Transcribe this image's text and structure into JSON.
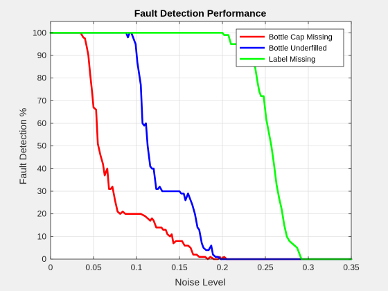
{
  "chart_data": {
    "type": "line",
    "title": "Fault Detection Performance",
    "xlabel": "Noise Level",
    "ylabel": "Fault Detection %",
    "xlim": [
      0,
      0.35
    ],
    "ylim": [
      0,
      105
    ],
    "xticks": [
      0,
      0.05,
      0.1,
      0.15,
      0.2,
      0.25,
      0.3,
      0.35
    ],
    "xtick_labels": [
      "0",
      "0.05",
      "0.1",
      "0.15",
      "0.2",
      "0.25",
      "0.3",
      "0.35"
    ],
    "yticks": [
      0,
      10,
      20,
      30,
      40,
      50,
      60,
      70,
      80,
      90,
      100
    ],
    "ytick_labels": [
      "0",
      "10",
      "20",
      "30",
      "40",
      "50",
      "60",
      "70",
      "80",
      "90",
      "100"
    ],
    "grid": true,
    "legend_position": "top-right",
    "series": [
      {
        "name": "Bottle Cap Missing",
        "color": "#ff0000",
        "points": [
          [
            0,
            100
          ],
          [
            0.035,
            100
          ],
          [
            0.038,
            98
          ],
          [
            0.04,
            97.5
          ],
          [
            0.042,
            94
          ],
          [
            0.044,
            90
          ],
          [
            0.046,
            82
          ],
          [
            0.048,
            75
          ],
          [
            0.05,
            67
          ],
          [
            0.053,
            66
          ],
          [
            0.055,
            51
          ],
          [
            0.058,
            46
          ],
          [
            0.061,
            42
          ],
          [
            0.063,
            37
          ],
          [
            0.066,
            40
          ],
          [
            0.068,
            31
          ],
          [
            0.07,
            31
          ],
          [
            0.072,
            32
          ],
          [
            0.075,
            26
          ],
          [
            0.078,
            21
          ],
          [
            0.081,
            20
          ],
          [
            0.084,
            21
          ],
          [
            0.087,
            20
          ],
          [
            0.09,
            20
          ],
          [
            0.095,
            20
          ],
          [
            0.1,
            20
          ],
          [
            0.105,
            20
          ],
          [
            0.11,
            19
          ],
          [
            0.113,
            18
          ],
          [
            0.116,
            17
          ],
          [
            0.118,
            18
          ],
          [
            0.12,
            17
          ],
          [
            0.123,
            14
          ],
          [
            0.126,
            14
          ],
          [
            0.129,
            14
          ],
          [
            0.131,
            13
          ],
          [
            0.134,
            13
          ],
          [
            0.136,
            11
          ],
          [
            0.139,
            10
          ],
          [
            0.141,
            11
          ],
          [
            0.143,
            7
          ],
          [
            0.146,
            8
          ],
          [
            0.15,
            8
          ],
          [
            0.153,
            8
          ],
          [
            0.156,
            6
          ],
          [
            0.16,
            6
          ],
          [
            0.163,
            5
          ],
          [
            0.166,
            2
          ],
          [
            0.17,
            2
          ],
          [
            0.173,
            1
          ],
          [
            0.176,
            1
          ],
          [
            0.18,
            1
          ],
          [
            0.183,
            0
          ],
          [
            0.186,
            1
          ],
          [
            0.19,
            0
          ],
          [
            0.195,
            0
          ],
          [
            0.197,
            1
          ],
          [
            0.199,
            0
          ],
          [
            0.202,
            1
          ],
          [
            0.205,
            0
          ],
          [
            0.35,
            0
          ]
        ]
      },
      {
        "name": "Bottle Underfilled",
        "color": "#0000ff",
        "points": [
          [
            0,
            100
          ],
          [
            0.085,
            100
          ],
          [
            0.088,
            100
          ],
          [
            0.09,
            98
          ],
          [
            0.092,
            100
          ],
          [
            0.094,
            100
          ],
          [
            0.096,
            98
          ],
          [
            0.099,
            95
          ],
          [
            0.101,
            87
          ],
          [
            0.103,
            82
          ],
          [
            0.105,
            77
          ],
          [
            0.107,
            60
          ],
          [
            0.109,
            59
          ],
          [
            0.111,
            60
          ],
          [
            0.113,
            50
          ],
          [
            0.116,
            41
          ],
          [
            0.118,
            40
          ],
          [
            0.12,
            40
          ],
          [
            0.123,
            31
          ],
          [
            0.125,
            31
          ],
          [
            0.127,
            32
          ],
          [
            0.13,
            30
          ],
          [
            0.135,
            30
          ],
          [
            0.14,
            30
          ],
          [
            0.145,
            30
          ],
          [
            0.15,
            30
          ],
          [
            0.152,
            29
          ],
          [
            0.155,
            29
          ],
          [
            0.157,
            26
          ],
          [
            0.16,
            29
          ],
          [
            0.162,
            27
          ],
          [
            0.165,
            24
          ],
          [
            0.168,
            20
          ],
          [
            0.171,
            14
          ],
          [
            0.173,
            13
          ],
          [
            0.176,
            7
          ],
          [
            0.178,
            5
          ],
          [
            0.181,
            4
          ],
          [
            0.184,
            4
          ],
          [
            0.187,
            6
          ],
          [
            0.189,
            2
          ],
          [
            0.192,
            1
          ],
          [
            0.195,
            1
          ],
          [
            0.198,
            0
          ],
          [
            0.2,
            0
          ],
          [
            0.35,
            0
          ]
        ]
      },
      {
        "name": "Label Missing",
        "color": "#00ff00",
        "points": [
          [
            0,
            100
          ],
          [
            0.16,
            100
          ],
          [
            0.19,
            100
          ],
          [
            0.2,
            100
          ],
          [
            0.202,
            99
          ],
          [
            0.205,
            99
          ],
          [
            0.207,
            99
          ],
          [
            0.21,
            95
          ],
          [
            0.213,
            95
          ],
          [
            0.216,
            95
          ],
          [
            0.219,
            95
          ],
          [
            0.222,
            95
          ],
          [
            0.225,
            92
          ],
          [
            0.228,
            90
          ],
          [
            0.231,
            88
          ],
          [
            0.234,
            86
          ],
          [
            0.238,
            85
          ],
          [
            0.241,
            78
          ],
          [
            0.243,
            74
          ],
          [
            0.245,
            72
          ],
          [
            0.248,
            72
          ],
          [
            0.251,
            62
          ],
          [
            0.254,
            56
          ],
          [
            0.257,
            50
          ],
          [
            0.26,
            42
          ],
          [
            0.263,
            33
          ],
          [
            0.266,
            27
          ],
          [
            0.269,
            22
          ],
          [
            0.272,
            15
          ],
          [
            0.275,
            10
          ],
          [
            0.278,
            8
          ],
          [
            0.281,
            7
          ],
          [
            0.284,
            6
          ],
          [
            0.287,
            5
          ],
          [
            0.29,
            2
          ],
          [
            0.292,
            0
          ],
          [
            0.35,
            0
          ]
        ]
      }
    ]
  }
}
